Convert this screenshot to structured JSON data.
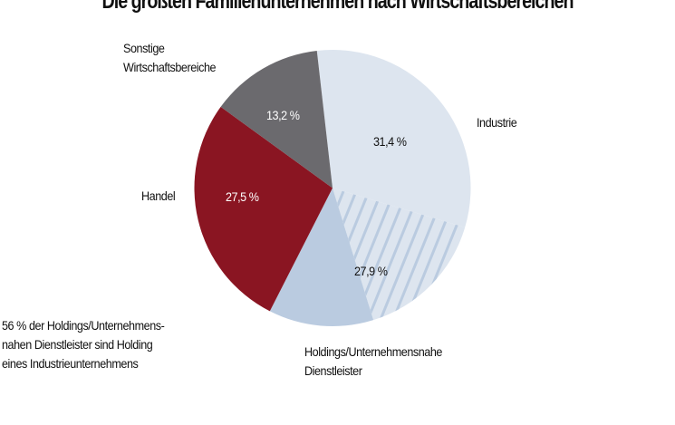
{
  "chart_data": {
    "type": "pie",
    "title": "Die größten Familienunternehmen nach Wirtschaftsbereichen",
    "slices": [
      {
        "name": "Industrie",
        "value": 31.4,
        "label": "31,4 %",
        "color": "#dde5ef"
      },
      {
        "name": "Holdings/Unternehmensnahe Dienstleister",
        "value": 27.9,
        "label": "27,9 %",
        "color": "#bacbe0",
        "hatched_share": 56,
        "hatch_color": "#dde5ef"
      },
      {
        "name": "Handel",
        "value": 27.5,
        "label": "27,5 %",
        "color": "#8a1522"
      },
      {
        "name": "Sonstige Wirtschaftsbereiche",
        "value": 13.2,
        "label": "13,2 %",
        "color": "#6b6a6e"
      }
    ],
    "annotation": [
      "56 % der Holdings/Unternehmens-",
      "nahen Dienstleister sind Holding",
      "eines Industrieunternehmens"
    ],
    "labels": {
      "industrie": "Industrie",
      "holdings": [
        "Holdings/Unternehmensnahe",
        "Dienstleister"
      ],
      "handel": "Handel",
      "sonstige": [
        "Sonstige",
        "Wirtschaftsbereiche"
      ]
    }
  }
}
